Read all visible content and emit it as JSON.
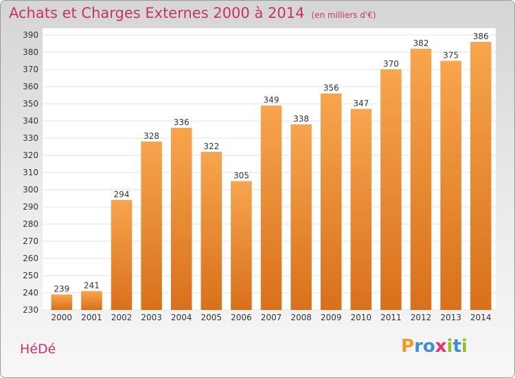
{
  "header": {
    "title": "Achats et Charges Externes 2000 à 2014",
    "subtitle": "(en milliers d'€)"
  },
  "footer": {
    "place": "HéDé",
    "logo_letters": [
      "P",
      "r",
      "o",
      "x",
      "i",
      "t",
      "i"
    ],
    "logo_colors": [
      "#f39a1f",
      "#3a8fd6",
      "#3a8fd6",
      "#e8307a",
      "#8fc31f",
      "#3a8fd6",
      "#8fc31f"
    ]
  },
  "chart_data": {
    "type": "bar",
    "title": "Achats et Charges Externes 2000 à 2014",
    "subtitle": "(en milliers d'€)",
    "categories": [
      "2000",
      "2001",
      "2002",
      "2003",
      "2004",
      "2005",
      "2006",
      "2007",
      "2008",
      "2009",
      "2010",
      "2011",
      "2012",
      "2013",
      "2014"
    ],
    "values": [
      239,
      241,
      294,
      328,
      336,
      322,
      305,
      349,
      338,
      356,
      347,
      370,
      382,
      375,
      386
    ],
    "ylim": [
      230,
      390
    ],
    "yticks": [
      230,
      240,
      250,
      260,
      270,
      280,
      290,
      300,
      310,
      320,
      330,
      340,
      350,
      360,
      370,
      380,
      390
    ],
    "grid": true,
    "bar_color_top": "#f7a54e",
    "bar_color_bottom": "#d9701b"
  }
}
